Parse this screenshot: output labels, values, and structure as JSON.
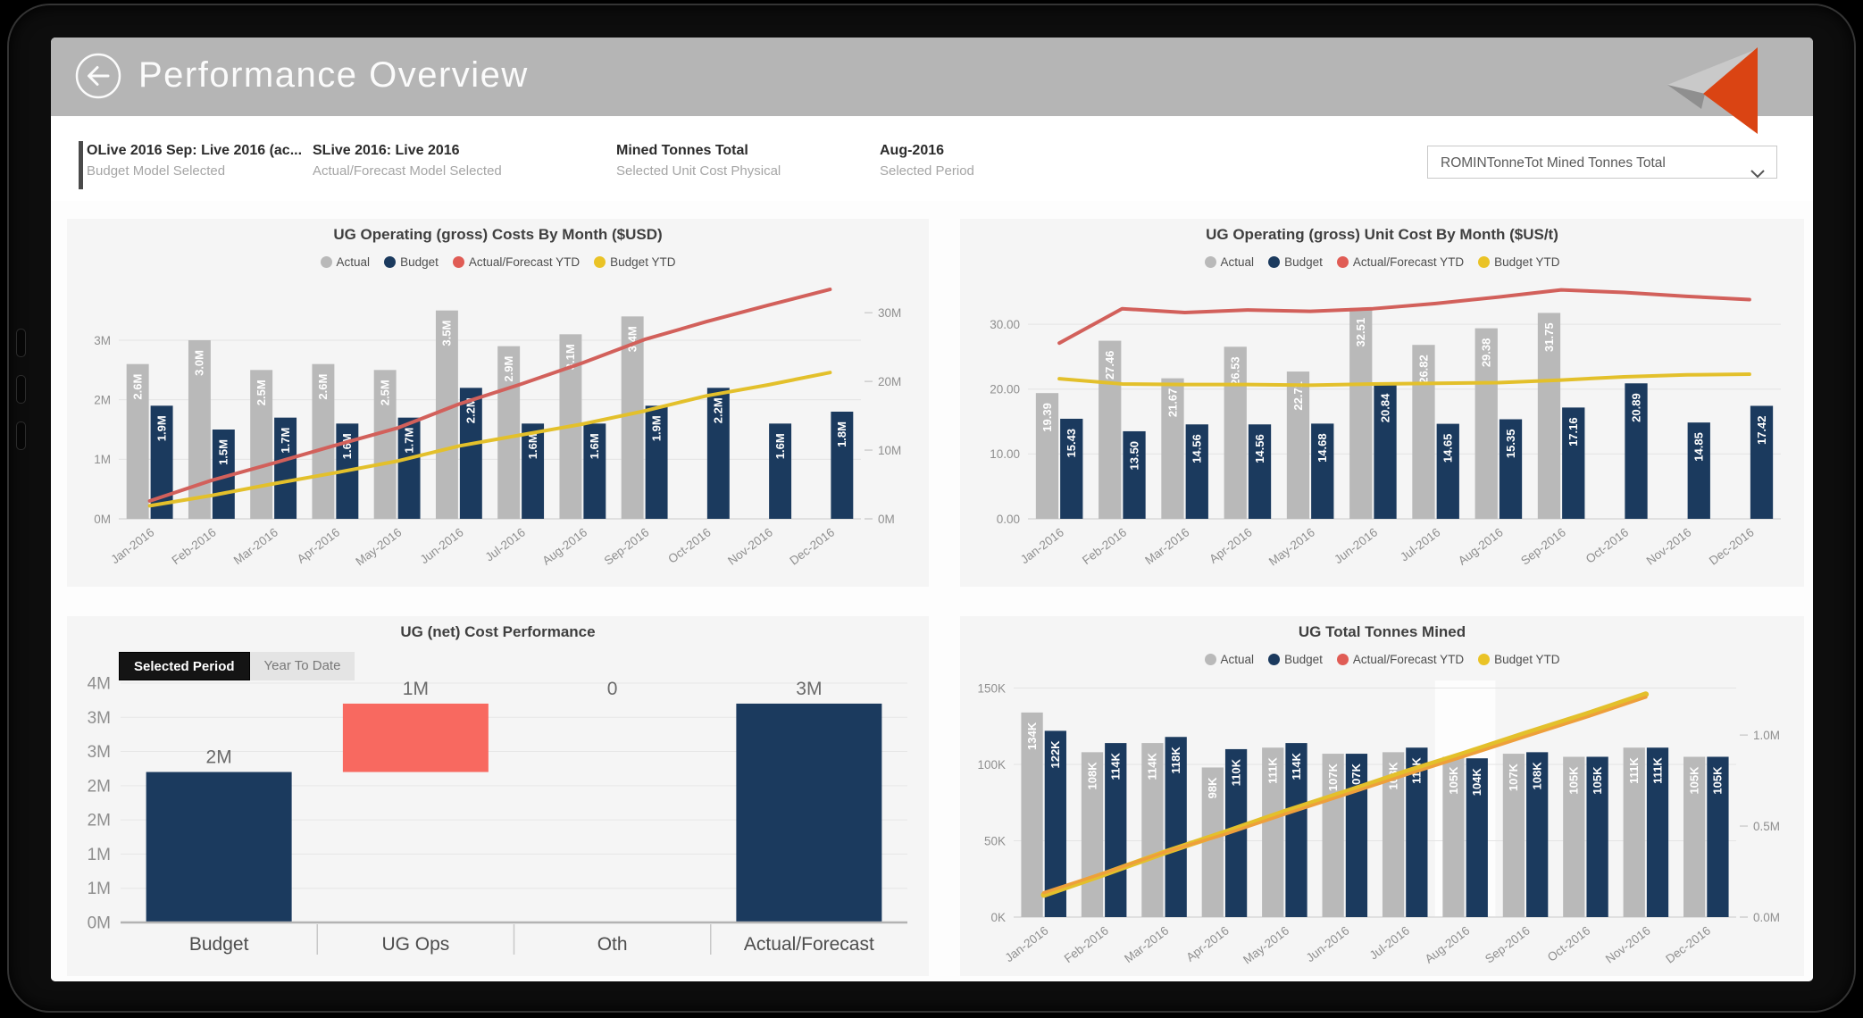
{
  "header": {
    "title": "Performance Overview"
  },
  "filters": [
    {
      "title": "OLive 2016 Sep: Live 2016 (ac...",
      "subtitle": "Budget Model Selected"
    },
    {
      "title": "SLive 2016: Live 2016",
      "subtitle": "Actual/Forecast Model Selected"
    },
    {
      "title": "Mined Tonnes Total",
      "subtitle": "Selected Unit Cost Physical"
    },
    {
      "title": "Aug-2016",
      "subtitle": "Selected Period"
    }
  ],
  "dropdown": {
    "value": "ROMINTonneTot Mined Tonnes Total"
  },
  "colors": {
    "header_gray": "#b5b5b5",
    "card_bg": "#f5f5f5",
    "navy": "#1b3a5e",
    "bar_gray": "#b9b9b9",
    "red_line": "#d2605b",
    "yellow_line": "#e3c02b",
    "salmon": "#f86960",
    "orange_line": "#ee9f3b",
    "logo_orange": "#da4413",
    "logo_gray": "#c9c9c9"
  },
  "chart_data": [
    {
      "type": "bar-line",
      "title": "UG Operating (gross) Costs By Month ($USD)",
      "legend": [
        {
          "label": "Actual",
          "color": "#b9b9b9"
        },
        {
          "label": "Budget",
          "color": "#1b3a5e"
        },
        {
          "label": "Actual/Forecast YTD",
          "color": "#e05c55"
        },
        {
          "label": "Budget YTD",
          "color": "#eac326"
        }
      ],
      "categories": [
        "Jan-2016",
        "Feb-2016",
        "Mar-2016",
        "Apr-2016",
        "May-2016",
        "Jun-2016",
        "Jul-2016",
        "Aug-2016",
        "Sep-2016",
        "Oct-2016",
        "Nov-2016",
        "Dec-2016"
      ],
      "left_axis": {
        "ticks": [
          0,
          1,
          2,
          3
        ],
        "labels": [
          "0M",
          "1M",
          "2M",
          "3M"
        ],
        "max": 3.9
      },
      "right_axis": {
        "ticks": [
          0,
          10,
          20,
          30
        ],
        "labels": [
          "0M",
          "10M",
          "20M",
          "30M"
        ],
        "max": 33.8
      },
      "series": [
        {
          "name": "Actual",
          "kind": "bar",
          "color": "#b9b9b9",
          "values": [
            2.6,
            3.0,
            2.5,
            2.6,
            2.5,
            3.5,
            2.9,
            3.1,
            3.4,
            null,
            null,
            null
          ],
          "labels": [
            "2.6M",
            "3.0M",
            "2.5M",
            "2.6M",
            "2.5M",
            "3.5M",
            "2.9M",
            "3.1M",
            "3.4M",
            "",
            "",
            ""
          ]
        },
        {
          "name": "Budget",
          "kind": "bar",
          "color": "#1b3a5e",
          "values": [
            1.9,
            1.5,
            1.7,
            1.6,
            1.7,
            2.2,
            1.6,
            1.6,
            1.9,
            2.2,
            1.6,
            1.8
          ],
          "labels": [
            "1.9M",
            "1.5M",
            "1.7M",
            "1.6M",
            "1.7M",
            "2.2M",
            "1.6M",
            "1.6M",
            "1.9M",
            "2.2M",
            "1.6M",
            "1.8M"
          ]
        },
        {
          "name": "Actual/Forecast YTD",
          "kind": "line",
          "axis": "right",
          "color": "#d2605b",
          "width": 4,
          "values": [
            2.6,
            5.6,
            8.1,
            10.7,
            13.2,
            16.7,
            19.6,
            22.7,
            26.1,
            28.7,
            31.1,
            33.4
          ]
        },
        {
          "name": "Budget YTD",
          "kind": "line",
          "axis": "right",
          "color": "#e3c02b",
          "width": 4,
          "values": [
            1.9,
            3.4,
            5.1,
            6.7,
            8.4,
            10.6,
            12.2,
            13.8,
            15.7,
            17.9,
            19.5,
            21.3
          ]
        }
      ]
    },
    {
      "type": "bar-line",
      "title": "UG Operating (gross) Unit Cost By Month ($US/t)",
      "legend": [
        {
          "label": "Actual",
          "color": "#b9b9b9"
        },
        {
          "label": "Budget",
          "color": "#1b3a5e"
        },
        {
          "label": "Actual/Forecast YTD",
          "color": "#e05c55"
        },
        {
          "label": "Budget YTD",
          "color": "#eac326"
        }
      ],
      "categories": [
        "Jan-2016",
        "Feb-2016",
        "Mar-2016",
        "Apr-2016",
        "May-2016",
        "Jun-2016",
        "Jul-2016",
        "Aug-2016",
        "Sep-2016",
        "Oct-2016",
        "Nov-2016",
        "Dec-2016"
      ],
      "left_axis": {
        "ticks": [
          0,
          10,
          20,
          30
        ],
        "labels": [
          "0.00",
          "10.00",
          "20.00",
          "30.00"
        ],
        "max": 35.8
      },
      "series": [
        {
          "name": "Actual",
          "kind": "bar",
          "color": "#b9b9b9",
          "values": [
            19.39,
            27.46,
            21.67,
            26.53,
            22.71,
            32.51,
            26.82,
            29.38,
            31.75,
            null,
            null,
            null
          ],
          "labels": [
            "19.39",
            "27.46",
            "21.67",
            "26.53",
            "22.71",
            "32.51",
            "26.82",
            "29.38",
            "31.75",
            "",
            "",
            ""
          ]
        },
        {
          "name": "Budget",
          "kind": "bar",
          "color": "#1b3a5e",
          "values": [
            15.43,
            13.5,
            14.56,
            14.56,
            14.68,
            20.84,
            14.65,
            15.35,
            17.16,
            20.89,
            14.85,
            17.42
          ],
          "labels": [
            "15.43",
            "13.50",
            "14.56",
            "14.56",
            "14.68",
            "20.84",
            "14.65",
            "15.35",
            "17.16",
            "20.89",
            "14.85",
            "17.42"
          ]
        },
        {
          "name": "Actual/Forecast YTD",
          "kind": "line",
          "axis": "left",
          "color": "#d2605b",
          "width": 4,
          "values": [
            27.1,
            32.4,
            31.8,
            32.2,
            32.0,
            32.4,
            33.2,
            34.2,
            35.3,
            34.9,
            34.3,
            33.8
          ]
        },
        {
          "name": "Budget YTD",
          "kind": "line",
          "axis": "left",
          "color": "#e3c02b",
          "width": 4,
          "values": [
            21.6,
            20.8,
            20.7,
            20.7,
            20.6,
            20.8,
            20.9,
            21.0,
            21.4,
            21.9,
            22.2,
            22.3
          ]
        }
      ]
    },
    {
      "type": "waterfall",
      "title": "UG (net) Cost Performance",
      "toggle": {
        "selected": "Selected Period",
        "other": "Year To Date"
      },
      "categories": [
        "Budget",
        "UG Ops",
        "Oth",
        "Actual/Forecast"
      ],
      "bars": [
        {
          "label": "2M",
          "start": 0,
          "end": 2.2,
          "color": "#1b3a5e"
        },
        {
          "label": "1M",
          "start": 2.2,
          "end": 3.2,
          "color": "#f86960"
        },
        {
          "label": "0",
          "start": 3.2,
          "end": 3.2,
          "color": "#f86960"
        },
        {
          "label": "3M",
          "start": 0,
          "end": 3.2,
          "color": "#1b3a5e"
        }
      ],
      "y_axis": {
        "ticks": [
          3.5,
          3,
          2.5,
          2,
          1.5,
          1,
          0.5,
          0
        ],
        "labels": [
          "4M",
          "3M",
          "3M",
          "2M",
          "2M",
          "1M",
          "1M",
          "0M"
        ],
        "max": 3.8
      }
    },
    {
      "type": "bar-line",
      "title": "UG Total Tonnes Mined",
      "legend": [
        {
          "label": "Actual",
          "color": "#b9b9b9"
        },
        {
          "label": "Budget",
          "color": "#1b3a5e"
        },
        {
          "label": "Actual/Forecast YTD",
          "color": "#e05c55"
        },
        {
          "label": "Budget YTD",
          "color": "#eac326"
        }
      ],
      "categories": [
        "Jan-2016",
        "Feb-2016",
        "Mar-2016",
        "Apr-2016",
        "May-2016",
        "Jun-2016",
        "Jul-2016",
        "Aug-2016",
        "Sep-2016",
        "Oct-2016",
        "Nov-2016",
        "Dec-2016"
      ],
      "highlight_category": "Aug-2016",
      "left_axis": {
        "ticks": [
          0,
          50,
          100,
          150
        ],
        "labels": [
          "0K",
          "50K",
          "100K",
          "150K"
        ],
        "max": 155
      },
      "right_axis": {
        "ticks": [
          0,
          0.5,
          1.0
        ],
        "labels": [
          "0.0M",
          "0.5M",
          "1.0M"
        ],
        "max": 1.3
      },
      "series": [
        {
          "name": "Actual",
          "kind": "bar",
          "color": "#b9b9b9",
          "values": [
            134,
            108,
            114,
            98,
            111,
            107,
            108,
            105,
            107,
            105,
            111,
            105
          ],
          "labels": [
            "134K",
            "108K",
            "114K",
            "98K",
            "111K",
            "107K",
            "108K",
            "105K",
            "107K",
            "105K",
            "111K",
            "105K"
          ]
        },
        {
          "name": "Budget",
          "kind": "bar",
          "color": "#1b3a5e",
          "values": [
            122,
            114,
            118,
            110,
            114,
            107,
            111,
            104,
            108,
            105,
            111,
            105
          ],
          "labels": [
            "122K",
            "114K",
            "118K",
            "110K",
            "114K",
            "107K",
            "111K",
            "104K",
            "108K",
            "105K",
            "111K",
            "105K"
          ]
        },
        {
          "name": "Budget YTD",
          "kind": "line",
          "axis": "right",
          "color": "#e3c02b",
          "width": 6.5,
          "values": [
            0.122,
            0.236,
            0.354,
            0.464,
            0.578,
            0.685,
            0.796,
            0.9,
            1.008,
            1.113,
            1.224,
            null
          ]
        },
        {
          "name": "Actual/Forecast YTD",
          "kind": "line",
          "axis": "right",
          "color": "#ee9f3b",
          "width": 3.5,
          "values": [
            0.134,
            0.242,
            0.356,
            0.454,
            0.565,
            0.672,
            0.78,
            0.885,
            0.992,
            1.097,
            1.208,
            null
          ]
        }
      ]
    }
  ]
}
